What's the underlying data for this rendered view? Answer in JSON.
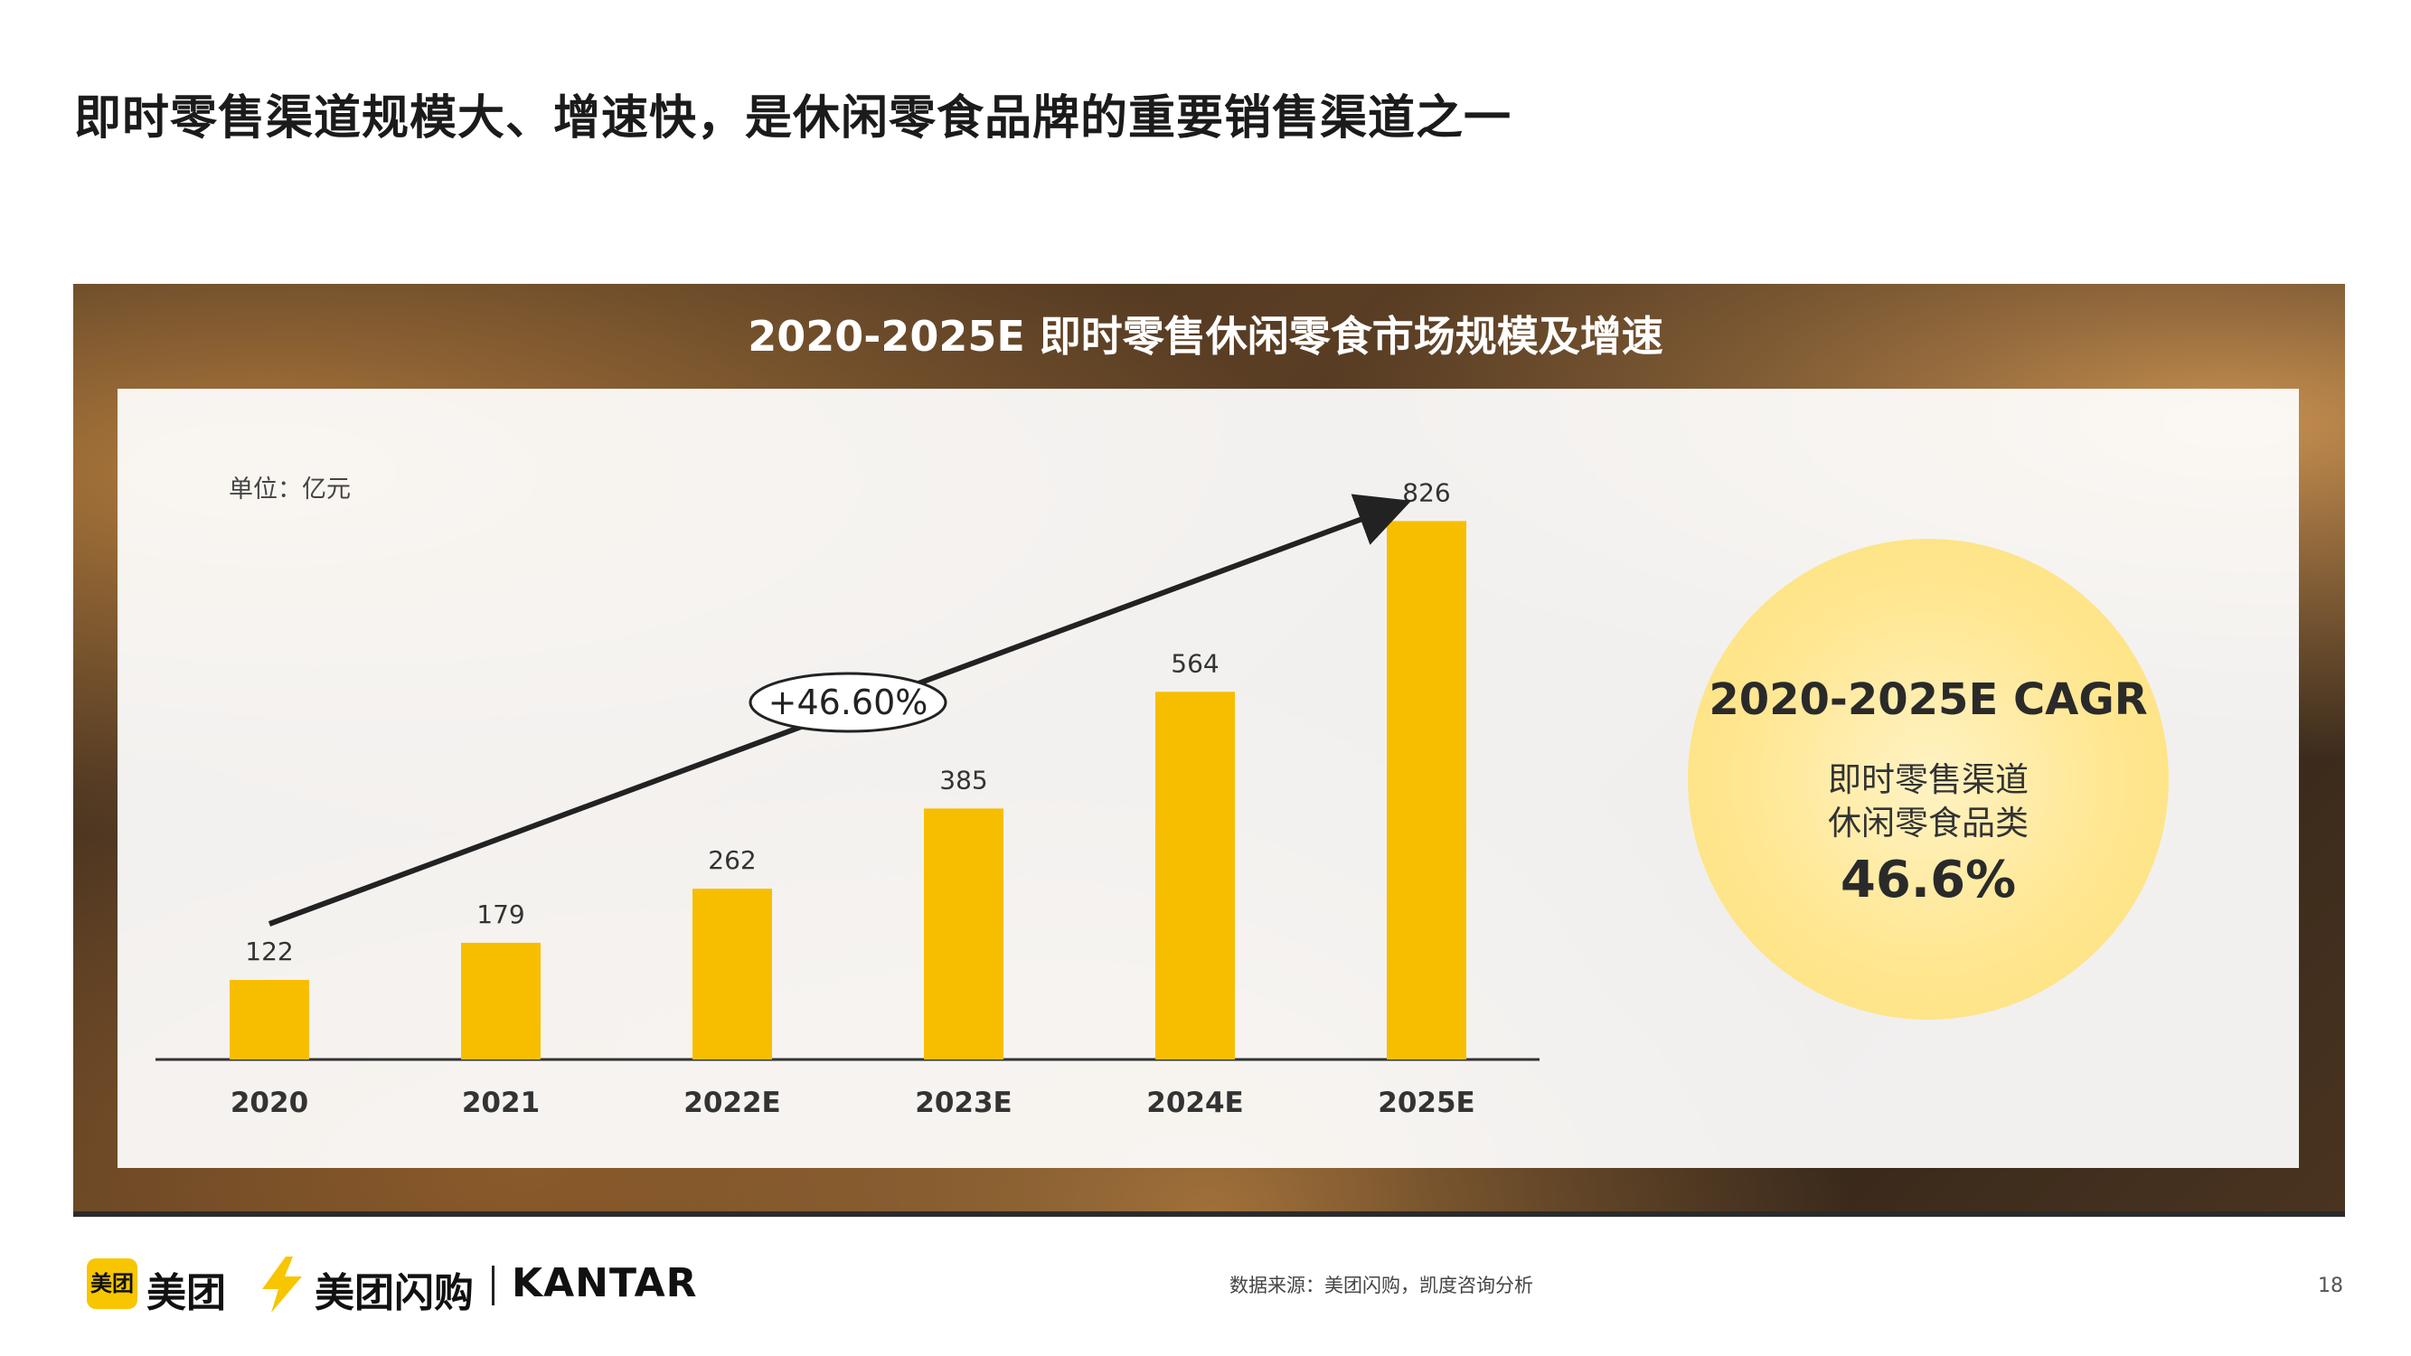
{
  "title": "即时零售渠道规模大、增速快，是休闲零食品牌的重要销售渠道之一",
  "chart_data": {
    "type": "bar",
    "title": "2020-2025E 即时零售休闲零食市场规模及增速",
    "unit_label": "单位：亿元",
    "categories": [
      "2020",
      "2021",
      "2022E",
      "2023E",
      "2024E",
      "2025E"
    ],
    "values": [
      122,
      179,
      262,
      385,
      564,
      826
    ],
    "ylim": [
      0,
      900
    ],
    "growth_annotation": "+46.60%",
    "bar_color": "#F7BE00"
  },
  "cagr": {
    "title": "2020-2025E CAGR",
    "line1": "即时零售渠道",
    "line2": "休闲零食品类",
    "value": "46.6%"
  },
  "footer": {
    "logo_meituan_box": "美团",
    "logo_meituan_text": "美团",
    "logo_shangou_text": "美团闪购",
    "logo_kantar": "KANTAR",
    "source": "数据来源：美团闪购，凯度咨询分析",
    "page_number": "18"
  }
}
